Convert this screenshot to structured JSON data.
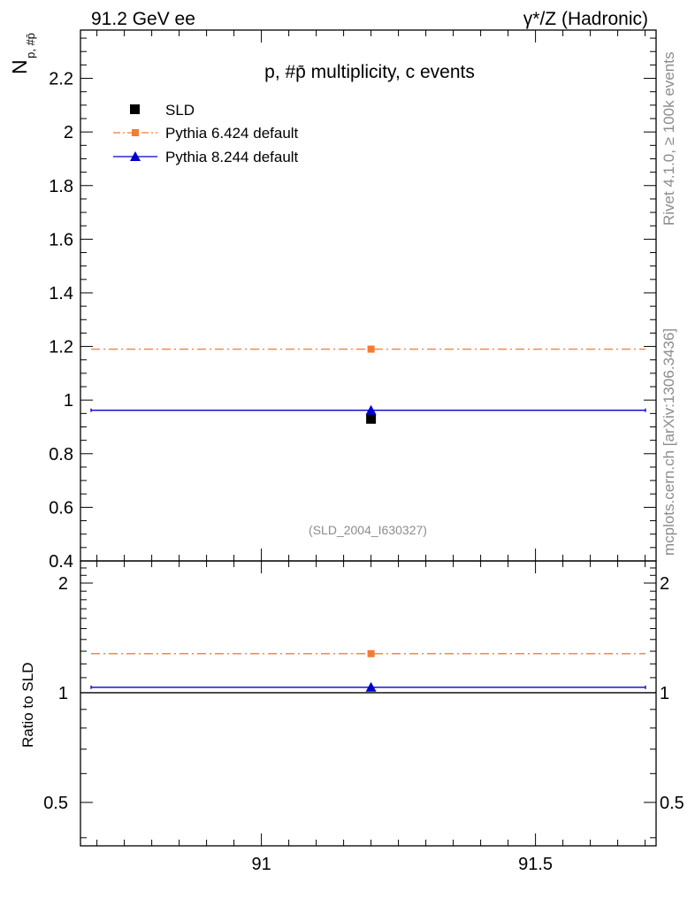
{
  "header": {
    "left": "91.2 GeV ee",
    "right": "γ*/Z (Hadronic)"
  },
  "side_text": {
    "rivet": "Rivet 4.1.0, ≥ 100k events",
    "mcplots": "mcplots.cern.ch [arXiv:1306.3436]"
  },
  "colors": {
    "sld": "#000000",
    "pythia6": "#f47c30",
    "pythia8": "#0000cc"
  },
  "chart_data": [
    {
      "type": "scatter",
      "title": "p, #p̄ multiplicity, c events",
      "ylabel": "N_{p, #p̄}",
      "ylabel_main": "N",
      "ylabel_sub": "p, #p̄",
      "annotation": "(SLD_2004_I630327)",
      "xlim": [
        90.67,
        91.72
      ],
      "ylim": [
        0.4,
        2.38
      ],
      "yticks": [
        0.4,
        0.6,
        0.8,
        1,
        1.2,
        1.4,
        1.6,
        1.8,
        2,
        2.2
      ],
      "ytick_labels": [
        "0.4",
        "0.6",
        "0.8",
        "1",
        "1.2",
        "1.4",
        "1.6",
        "1.8",
        "2",
        "2.2"
      ],
      "legend_position": "top-left",
      "series": [
        {
          "name": "SLD",
          "style": "square-marker",
          "x": 91.2,
          "y": 0.93
        },
        {
          "name": "Pythia 6.424 default",
          "style": "dash-dot-square",
          "x": 91.2,
          "y": 1.19,
          "xrange": [
            90.67,
            91.72
          ]
        },
        {
          "name": "Pythia 8.244 default",
          "style": "solid-triangle",
          "x": 91.2,
          "y": 0.962,
          "xrange": [
            90.67,
            91.72
          ]
        }
      ]
    },
    {
      "type": "scatter",
      "title": "Ratio",
      "ylabel": "Ratio to SLD",
      "xlim": [
        90.67,
        91.72
      ],
      "ylim": [
        0.38,
        2.3
      ],
      "yscale": "log",
      "xticks": [
        91,
        91.5
      ],
      "xtick_labels": [
        "91",
        "91.5"
      ],
      "yticks": [
        0.5,
        1,
        2
      ],
      "ytick_labels": [
        "0.5",
        "1",
        "2"
      ],
      "reference": 1,
      "series": [
        {
          "name": "Pythia 6.424 default",
          "x": 91.2,
          "y": 1.28
        },
        {
          "name": "Pythia 8.244 default",
          "x": 91.2,
          "y": 1.035
        }
      ]
    }
  ]
}
